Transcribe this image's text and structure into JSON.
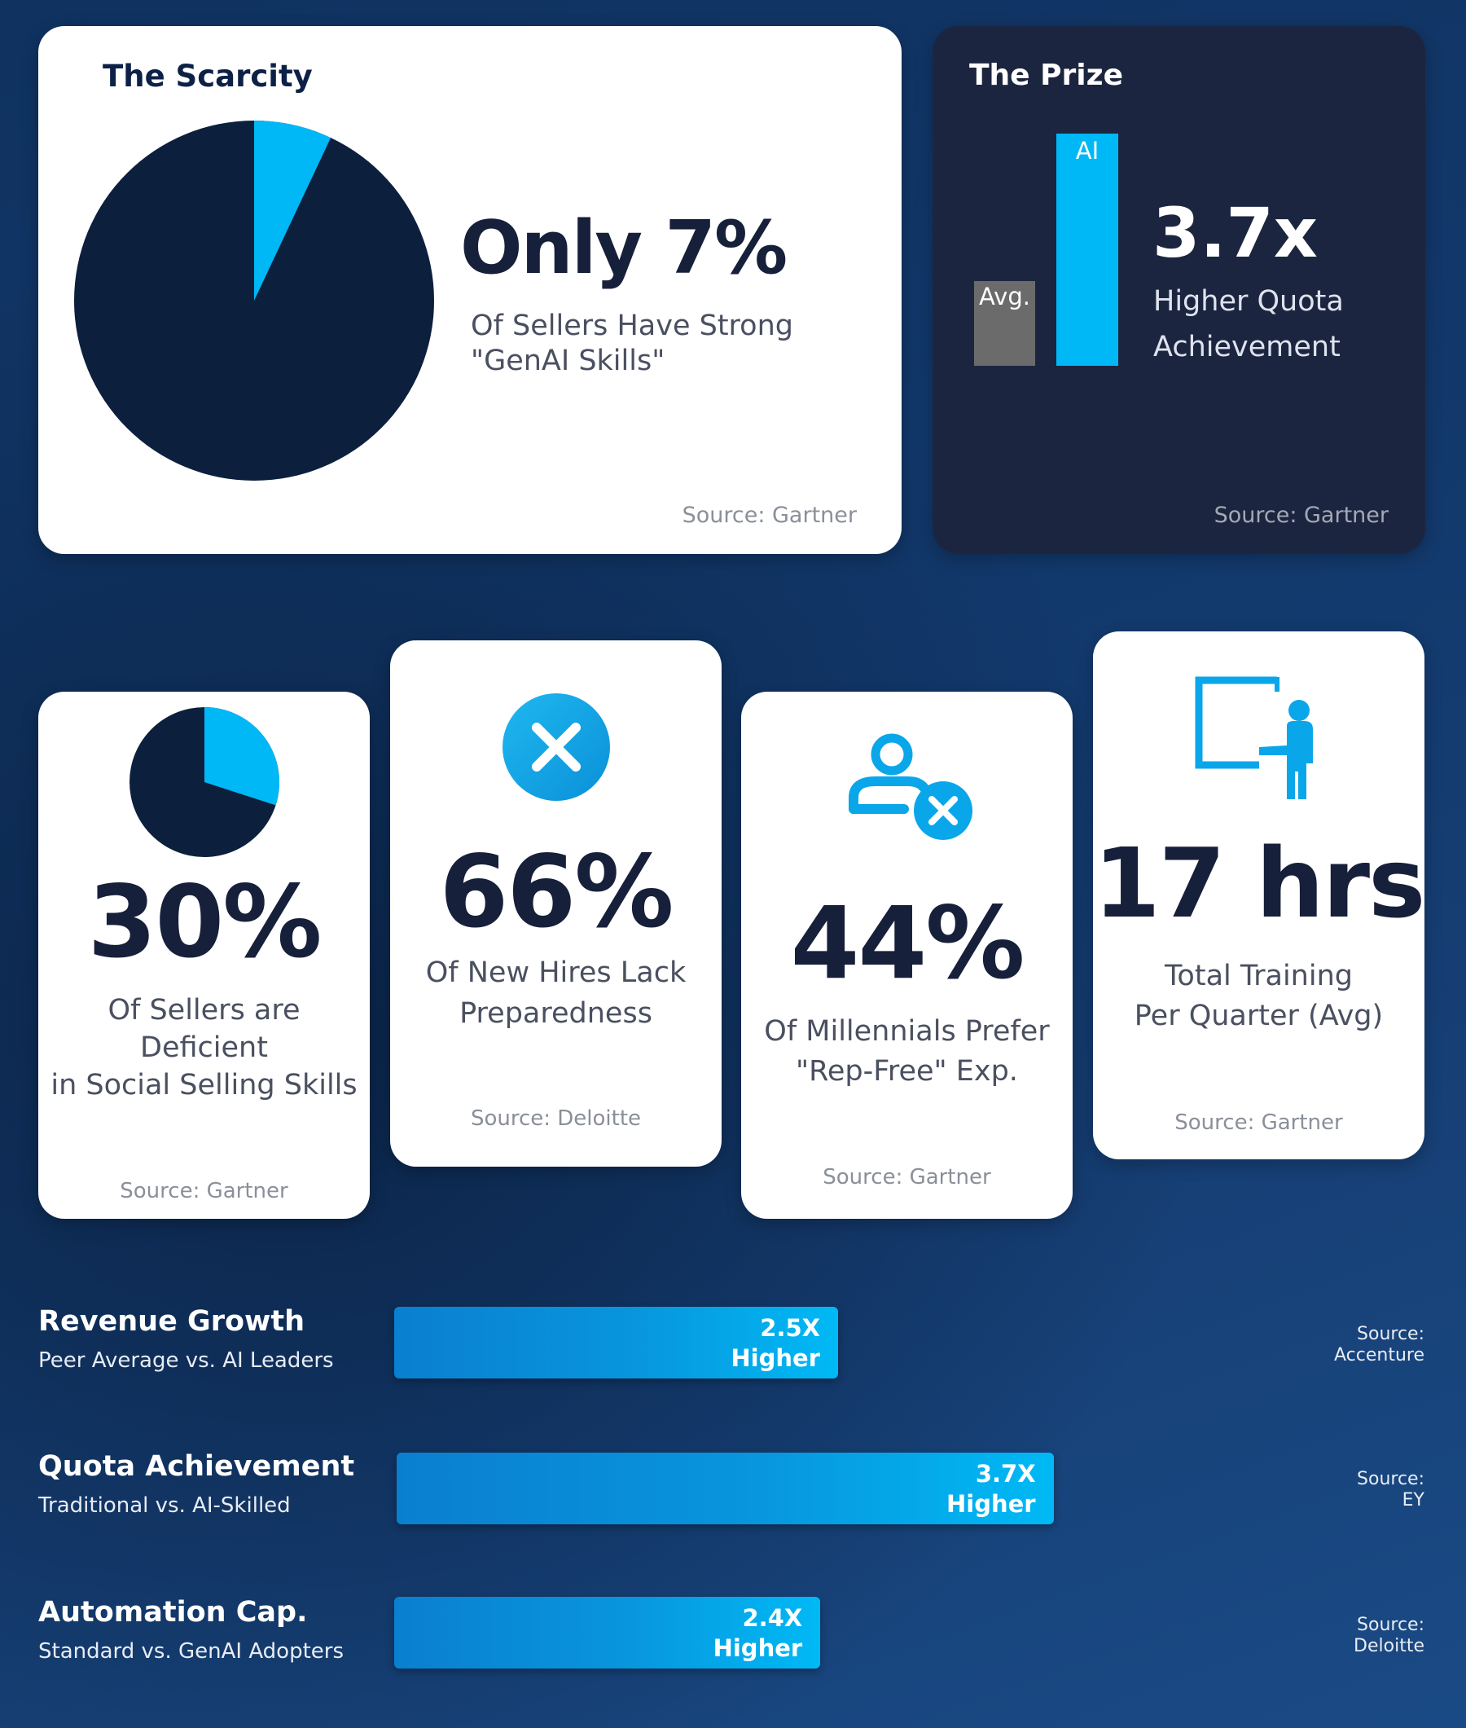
{
  "scarcity": {
    "title": "The Scarcity",
    "headline": "Only 7%",
    "desc_line1": "Of Sellers Have Strong",
    "desc_line2": "\"GenAI Skills\"",
    "source": "Source: Gartner",
    "percent": 7
  },
  "prize": {
    "title": "The Prize",
    "bar_avg_label": "Avg.",
    "bar_ai_label": "AI",
    "bar_avg_value": 1,
    "bar_ai_value": 3.7,
    "headline": "3.7x",
    "desc_line1": "Higher Quota",
    "desc_line2": "Achievement",
    "source": "Source: Gartner"
  },
  "stats": [
    {
      "icon": "pie-chart-icon",
      "percent": 30,
      "value": "30%",
      "desc": [
        "Of Sellers are",
        "Deficient",
        "in Social Selling Skills"
      ],
      "source": "Source: Gartner"
    },
    {
      "icon": "x-circle-icon",
      "value": "66%",
      "desc": [
        "Of New Hires Lack",
        "Preparedness"
      ],
      "source": "Source: Deloitte"
    },
    {
      "icon": "user-remove-icon",
      "value": "44%",
      "desc": [
        "Of Millennials Prefer",
        "\"Rep-Free\" Exp."
      ],
      "source": "Source: Gartner"
    },
    {
      "icon": "presentation-icon",
      "value": "17 hrs",
      "desc": [
        "Total Training",
        "Per Quarter (Avg)"
      ],
      "source": "Source: Gartner"
    }
  ],
  "comparisons": [
    {
      "label": "Revenue Growth",
      "sub": "Peer Average vs. AI Leaders",
      "multiplier": 2.5,
      "value": "2.5X",
      "value2": "Higher",
      "source1": "Source:",
      "source2": "Accenture"
    },
    {
      "label": "Quota Achievement",
      "sub": "Traditional vs. AI-Skilled",
      "multiplier": 3.7,
      "value": "3.7X",
      "value2": "Higher",
      "source1": "Source:",
      "source2": "EY"
    },
    {
      "label": "Automation Cap.",
      "sub": "Standard vs. GenAI Adopters",
      "multiplier": 2.4,
      "value": "2.4X",
      "value2": "Higher",
      "source1": "Source:",
      "source2": "Deloitte"
    }
  ],
  "colors": {
    "accent": "#00b8f5",
    "navy": "#0c1f3d",
    "prize_bg": "#1c2540",
    "avg_bar": "#6b6b6b"
  }
}
